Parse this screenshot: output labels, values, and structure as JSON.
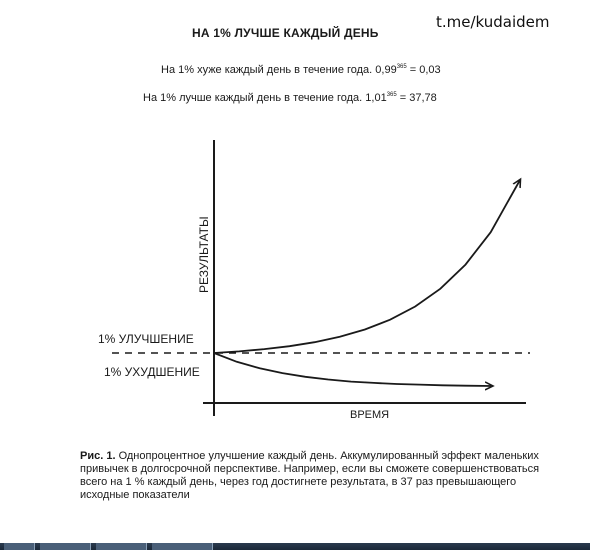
{
  "watermark": "t.me/kudaidem",
  "header": {
    "title": "НА 1% ЛУЧШЕ КАЖДЫЙ ДЕНЬ",
    "formula_worse": {
      "text": "На 1% хуже каждый день в течение года. 0,99",
      "exponent": "365",
      "result": " = 0,03"
    },
    "formula_better": {
      "text": "На 1% лучше каждый день в течение года. 1,01",
      "exponent": "365",
      "result": " = 37,78"
    }
  },
  "chart_data": {
    "type": "line",
    "title": "НА 1% ЛУЧШЕ КАЖДЫЙ ДЕНЬ",
    "xlabel": "ВРЕМЯ",
    "ylabel": "РЕЗУЛЬТАТЫ",
    "annotations": [
      "1% УЛУЧШЕНИЕ",
      "1% УХУДШЕНИЕ"
    ],
    "x": [
      0,
      30,
      60,
      90,
      120,
      150,
      180,
      210,
      240,
      270,
      300,
      330,
      365
    ],
    "series": [
      {
        "values": [
          1.0,
          1.35,
          1.82,
          2.45,
          3.3,
          4.44,
          5.99,
          8.07,
          10.88,
          14.67,
          19.79,
          26.68,
          37.78
        ]
      },
      {
        "values": [
          1.0,
          0.74,
          0.55,
          0.41,
          0.3,
          0.22,
          0.16,
          0.12,
          0.09,
          0.07,
          0.05,
          0.04,
          0.03
        ]
      }
    ],
    "baseline": 1.0,
    "xlim": [
      0,
      365
    ],
    "ylim": [
      -0.8,
      40
    ],
    "grid": false,
    "legend": "none"
  },
  "caption": {
    "label": "Рис. 1.",
    "text": " Однопроцентное улучшение каждый день. Аккумулированный эффект маленьких привычек в долгосрочной перспективе. Например, если вы сможете совершенствоваться всего на 1 % каждый день, через год достигнете результата, в 37 раз превышающего исходные показатели"
  }
}
